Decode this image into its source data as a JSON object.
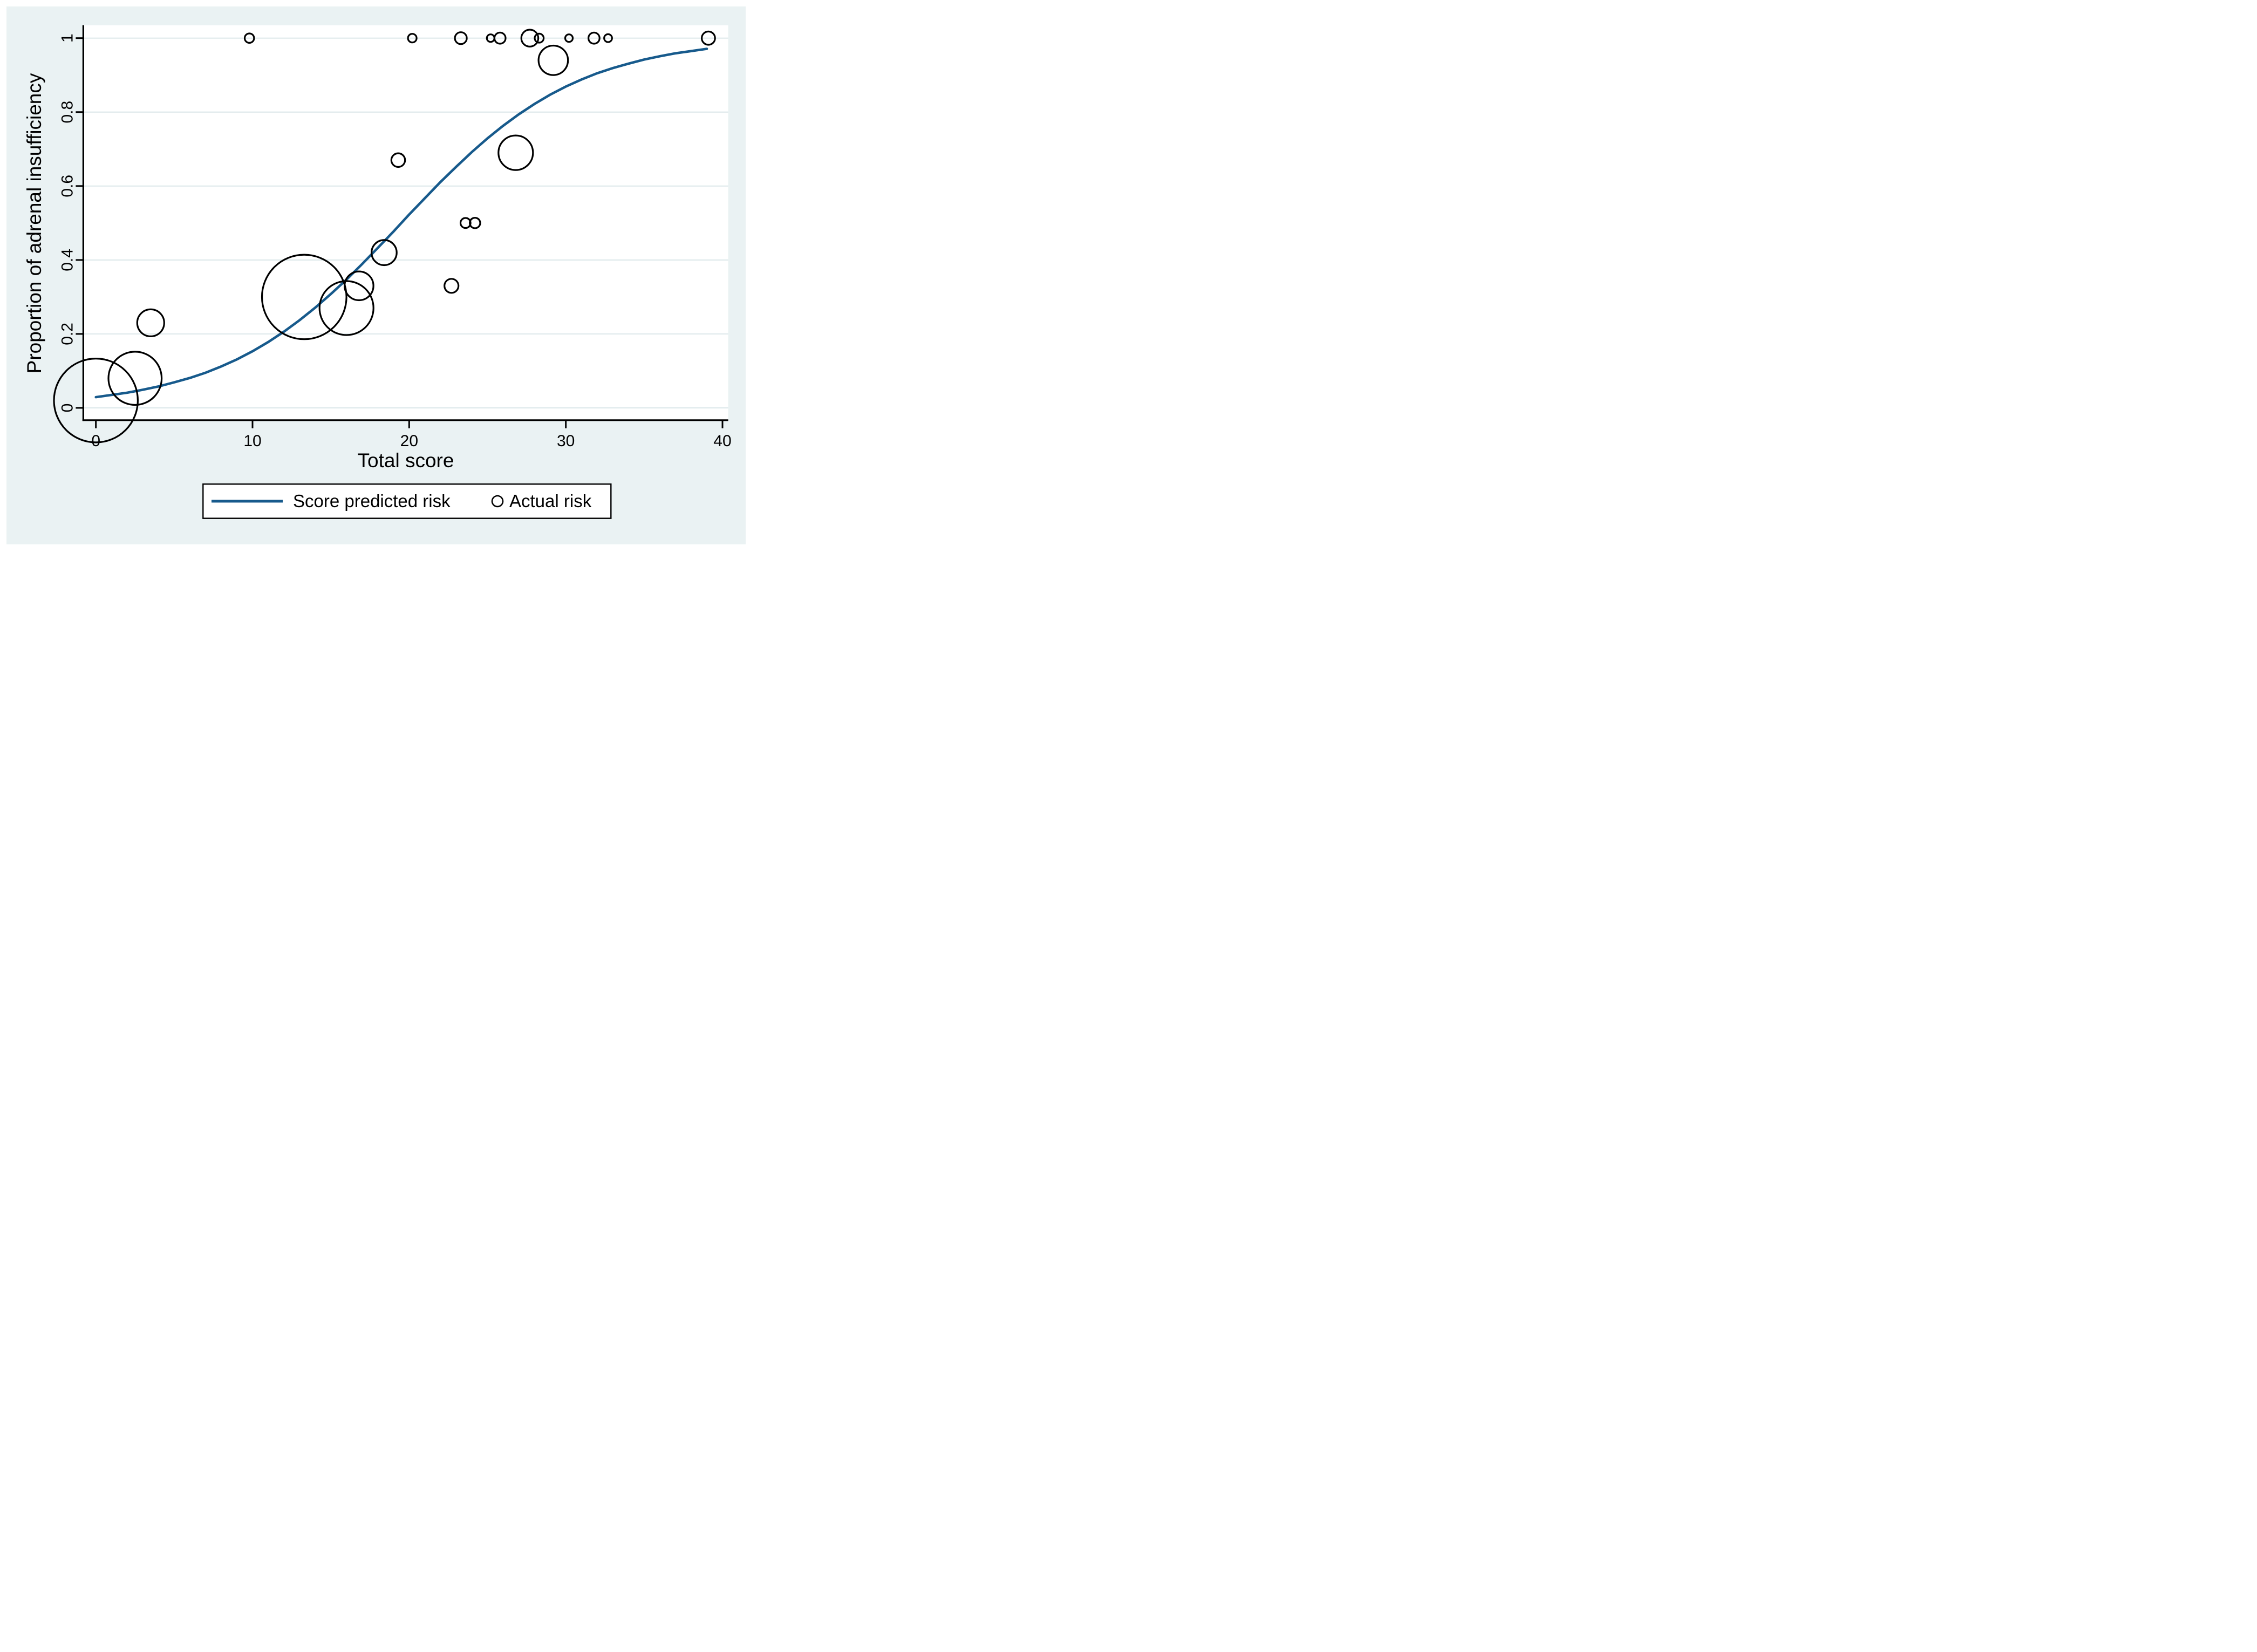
{
  "figure": {
    "background_color": "#eaf2f3",
    "plot_background": "#ffffff",
    "gridline_color": "#dfeaec",
    "axis_color": "#000000",
    "line_color": "#175a8c",
    "marker_stroke_color": "#000000",
    "legend_border_color": "#000000",
    "legend_background": "#ffffff"
  },
  "chart_data": {
    "type": "scatter",
    "title": "",
    "xlabel": "Total score",
    "ylabel": "Proportion of adrenal insufficiency",
    "xlim": [
      0,
      40
    ],
    "ylim": [
      0,
      1
    ],
    "x_ticks": [
      0,
      10,
      20,
      30,
      40
    ],
    "x_tick_labels": [
      "0",
      "10",
      "20",
      "30",
      "40"
    ],
    "y_ticks": [
      0,
      0.2,
      0.4,
      0.6,
      0.8,
      1
    ],
    "y_tick_labels": [
      "0",
      "0.2",
      "0.4",
      "0.6",
      "0.8",
      "1"
    ],
    "grid": true,
    "legend": {
      "position": "bottom",
      "entries": [
        {
          "label": "Score predicted risk",
          "marker": "line"
        },
        {
          "label": "Actual risk",
          "marker": "circle"
        }
      ]
    },
    "series": [
      {
        "name": "Score predicted risk",
        "type": "line",
        "points": [
          [
            0,
            0.029
          ],
          [
            1,
            0.035
          ],
          [
            2,
            0.041
          ],
          [
            3,
            0.049
          ],
          [
            4,
            0.058
          ],
          [
            5,
            0.069
          ],
          [
            6,
            0.081
          ],
          [
            7,
            0.095
          ],
          [
            8,
            0.112
          ],
          [
            9,
            0.131
          ],
          [
            10,
            0.153
          ],
          [
            11,
            0.178
          ],
          [
            12,
            0.206
          ],
          [
            13,
            0.237
          ],
          [
            14,
            0.271
          ],
          [
            15,
            0.308
          ],
          [
            16,
            0.347
          ],
          [
            17,
            0.389
          ],
          [
            18,
            0.433
          ],
          [
            19,
            0.477
          ],
          [
            20,
            0.523
          ],
          [
            21,
            0.567
          ],
          [
            22,
            0.611
          ],
          [
            23,
            0.652
          ],
          [
            24,
            0.692
          ],
          [
            25,
            0.729
          ],
          [
            26,
            0.763
          ],
          [
            27,
            0.794
          ],
          [
            28,
            0.822
          ],
          [
            29,
            0.847
          ],
          [
            30,
            0.869
          ],
          [
            31,
            0.888
          ],
          [
            32,
            0.905
          ],
          [
            33,
            0.919
          ],
          [
            34,
            0.931
          ],
          [
            35,
            0.942
          ],
          [
            36,
            0.951
          ],
          [
            37,
            0.959
          ],
          [
            38,
            0.965
          ],
          [
            39,
            0.971
          ]
        ]
      },
      {
        "name": "Actual risk",
        "type": "bubble",
        "points": [
          {
            "x": 0.0,
            "y": 0.02,
            "r": 77.7
          },
          {
            "x": 2.5,
            "y": 0.08,
            "r": 49.3
          },
          {
            "x": 3.5,
            "y": 0.23,
            "r": 25.0
          },
          {
            "x": 13.3,
            "y": 0.3,
            "r": 78.3
          },
          {
            "x": 16.0,
            "y": 0.27,
            "r": 50.0
          },
          {
            "x": 16.8,
            "y": 0.33,
            "r": 26.7
          },
          {
            "x": 18.4,
            "y": 0.42,
            "r": 23.3
          },
          {
            "x": 19.3,
            "y": 0.67,
            "r": 12.7
          },
          {
            "x": 22.7,
            "y": 0.33,
            "r": 13.0
          },
          {
            "x": 23.6,
            "y": 0.5,
            "r": 9.3
          },
          {
            "x": 24.2,
            "y": 0.5,
            "r": 9.7
          },
          {
            "x": 26.8,
            "y": 0.69,
            "r": 32.0
          },
          {
            "x": 29.2,
            "y": 0.94,
            "r": 27.3
          },
          {
            "x": 9.8,
            "y": 1.0,
            "r": 8.7
          },
          {
            "x": 20.2,
            "y": 1.0,
            "r": 8.0
          },
          {
            "x": 23.3,
            "y": 1.0,
            "r": 11.0
          },
          {
            "x": 25.2,
            "y": 1.0,
            "r": 7.0
          },
          {
            "x": 25.8,
            "y": 1.0,
            "r": 10.3
          },
          {
            "x": 27.7,
            "y": 1.0,
            "r": 15.7
          },
          {
            "x": 28.3,
            "y": 1.0,
            "r": 8.3
          },
          {
            "x": 30.2,
            "y": 1.0,
            "r": 7.0
          },
          {
            "x": 31.8,
            "y": 1.0,
            "r": 10.3
          },
          {
            "x": 32.7,
            "y": 1.0,
            "r": 7.3
          },
          {
            "x": 39.1,
            "y": 1.0,
            "r": 12.3
          }
        ]
      }
    ]
  }
}
